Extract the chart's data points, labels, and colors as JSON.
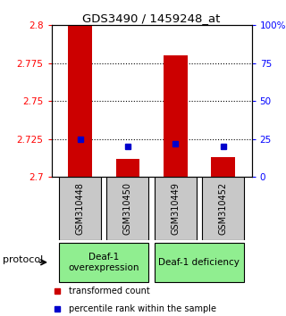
{
  "title": "GDS3490 / 1459248_at",
  "samples": [
    "GSM310448",
    "GSM310450",
    "GSM310449",
    "GSM310452"
  ],
  "red_values": [
    2.8,
    2.712,
    2.78,
    2.713
  ],
  "blue_percentiles": [
    25,
    20,
    22,
    20
  ],
  "y_min": 2.7,
  "y_max": 2.8,
  "y_ticks": [
    2.7,
    2.725,
    2.75,
    2.775,
    2.8
  ],
  "y_tick_labels": [
    "2.7",
    "2.725",
    "2.75",
    "2.775",
    "2.8"
  ],
  "right_y_ticks": [
    0,
    25,
    50,
    75,
    100
  ],
  "right_y_labels": [
    "0",
    "25",
    "50",
    "75",
    "100%"
  ],
  "bar_color": "#CC0000",
  "blue_color": "#0000CC",
  "bar_width": 0.5,
  "protocol_label": "protocol",
  "legend_red": "transformed count",
  "legend_blue": "percentile rank within the sample",
  "sample_box_color": "#C0C0C0",
  "group_color": "#90EE90",
  "group1_label": "Deaf-1\noverexpression",
  "group2_label": "Deaf-1 deficiency",
  "grid_linestyle": ":",
  "grid_linewidth": 0.8
}
